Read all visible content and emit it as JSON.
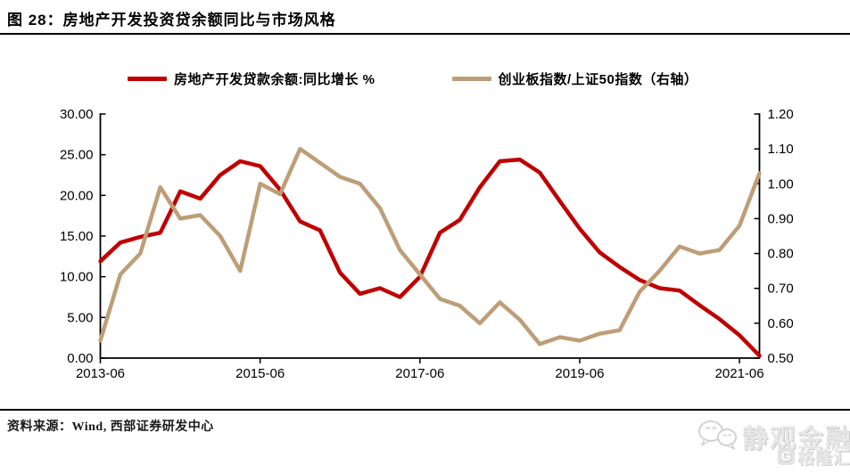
{
  "title": "图 28：房地产开发投资贷余额同比与市场风格",
  "source": "资料来源：Wind, 西部证券研发中心",
  "watermark": {
    "wechat_icon": "wechat-chat-bubbles-icon",
    "main_text": "静观金融",
    "logo_letter": "G",
    "sub_text": "格隆汇"
  },
  "colors": {
    "loan_line": "#C00000",
    "ratio_line": "#BE9E77",
    "axis": "#000000",
    "background": "#FFFFFF"
  },
  "chart_data": {
    "type": "line",
    "title": "图 28：房地产开发投资贷余额同比与市场风格",
    "grid": false,
    "legend_position": "top",
    "categories": [
      "2013-06",
      "2013-09",
      "2013-12",
      "2014-03",
      "2014-06",
      "2014-09",
      "2014-12",
      "2015-03",
      "2015-06",
      "2015-09",
      "2015-12",
      "2016-03",
      "2016-06",
      "2016-09",
      "2016-12",
      "2017-03",
      "2017-06",
      "2017-09",
      "2017-12",
      "2018-03",
      "2018-06",
      "2018-09",
      "2018-12",
      "2019-03",
      "2019-06",
      "2019-09",
      "2019-12",
      "2020-03",
      "2020-06",
      "2020-09",
      "2020-12",
      "2021-03",
      "2021-06",
      "2021-09"
    ],
    "series": [
      {
        "name": "房地产开发贷款余额:同比增长 %",
        "axis": "left",
        "color": "#C00000",
        "values": [
          11.9,
          14.2,
          14.9,
          15.4,
          20.5,
          19.6,
          22.5,
          24.2,
          23.6,
          20.7,
          16.8,
          15.7,
          10.5,
          7.9,
          8.6,
          7.5,
          10.0,
          15.4,
          17.0,
          21.0,
          24.2,
          24.4,
          22.8,
          19.3,
          15.9,
          13.0,
          11.2,
          9.6,
          8.6,
          8.3,
          6.5,
          4.8,
          2.8,
          0.3
        ]
      },
      {
        "name": "创业板指数/上证50指数（右轴）",
        "axis": "right",
        "color": "#BE9E77",
        "values": [
          0.55,
          0.74,
          0.8,
          0.99,
          0.9,
          0.91,
          0.85,
          0.75,
          1.0,
          0.97,
          1.1,
          1.06,
          1.02,
          1.0,
          0.93,
          0.81,
          0.74,
          0.67,
          0.65,
          0.6,
          0.66,
          0.61,
          0.54,
          0.56,
          0.55,
          0.57,
          0.58,
          0.69,
          0.75,
          0.82,
          0.8,
          0.81,
          0.88,
          1.03
        ]
      }
    ],
    "left_axis": {
      "min": 0,
      "max": 30,
      "step": 5,
      "tick_labels": [
        "30.00",
        "25.00",
        "20.00",
        "15.00",
        "10.00",
        "5.00",
        "0.00"
      ]
    },
    "right_axis": {
      "min": 0.5,
      "max": 1.2,
      "step": 0.1,
      "tick_labels": [
        "1.20",
        "1.10",
        "1.00",
        "0.90",
        "0.80",
        "0.70",
        "0.60",
        "0.50"
      ]
    },
    "x_tick_labels": [
      "2013-06",
      "2015-06",
      "2017-06",
      "2019-06",
      "2021-06"
    ],
    "x_tick_indices": [
      0,
      8,
      16,
      24,
      32
    ]
  }
}
